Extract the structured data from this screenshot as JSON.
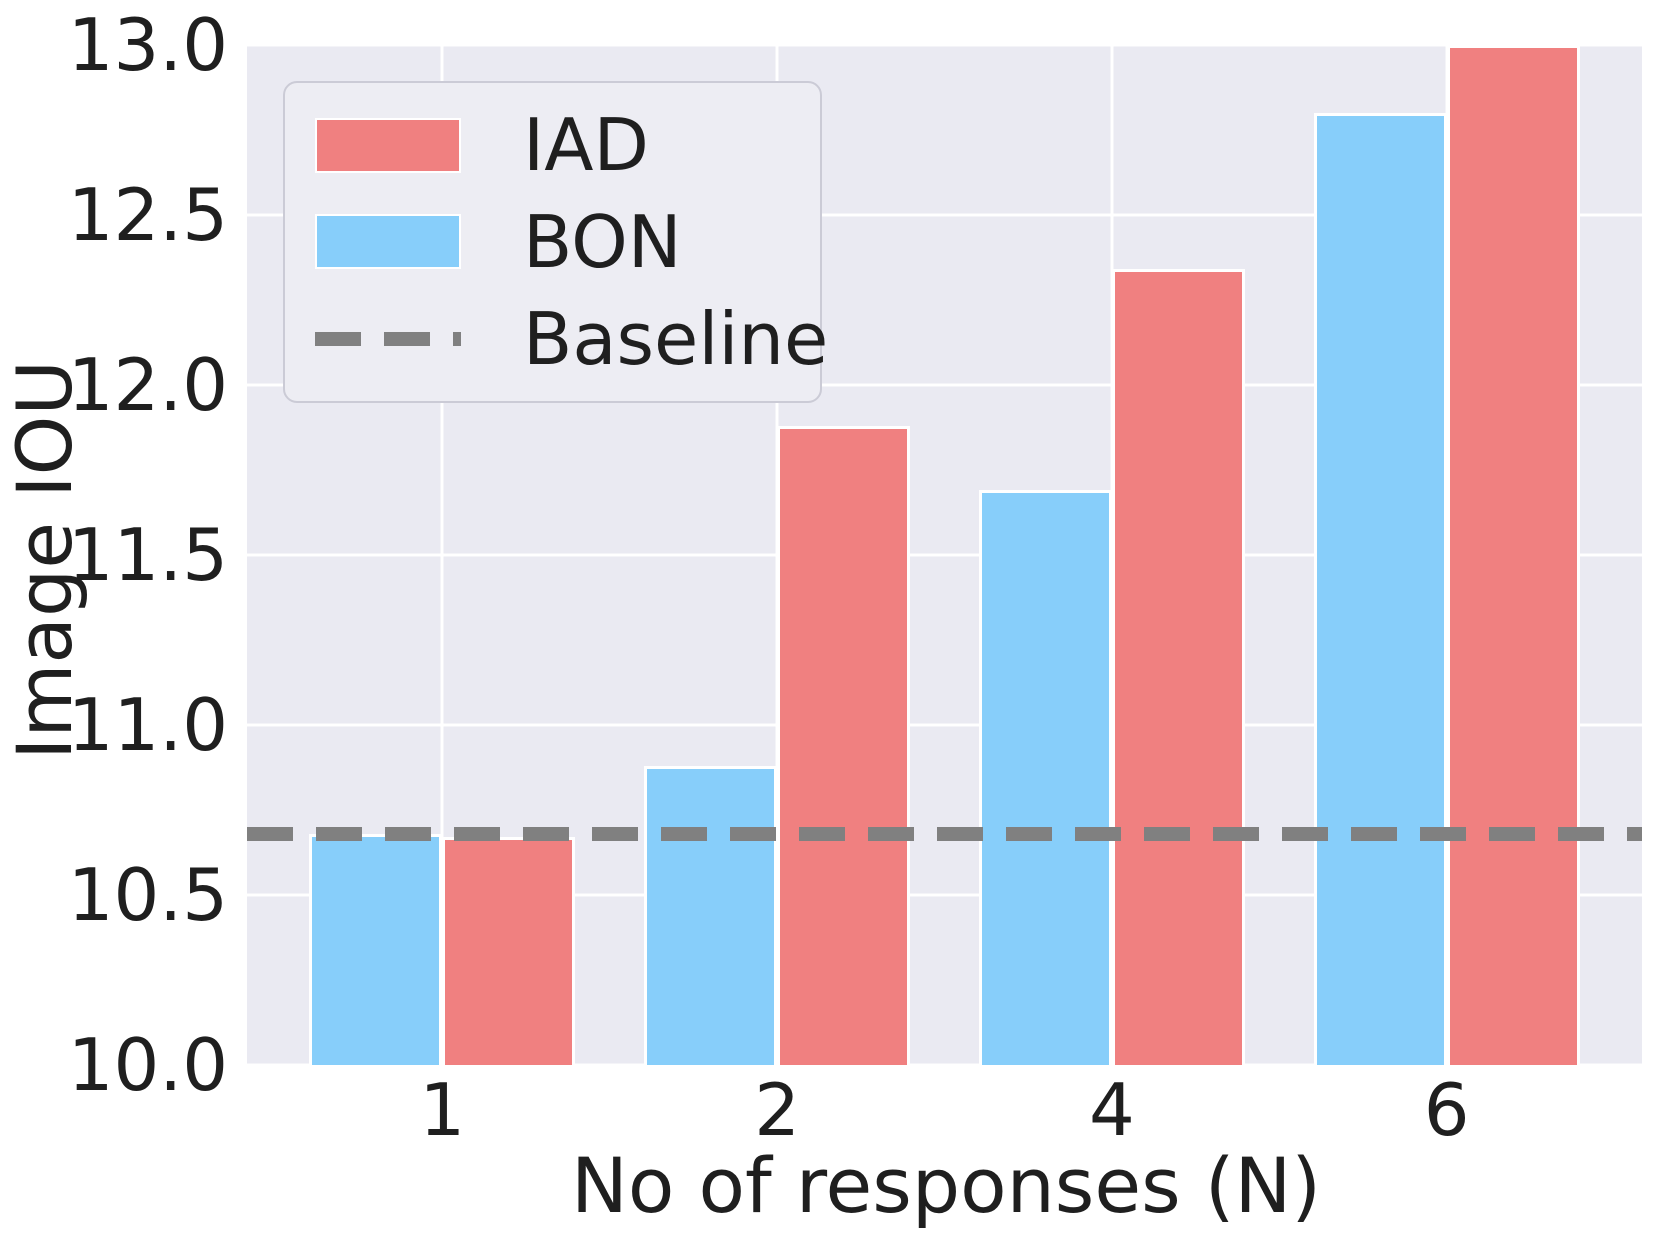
{
  "figure": {
    "background": "#ffffff",
    "plot_background": "#eaeaf2",
    "gridline_color": "#ffffff",
    "text_color": "#1f1f1f"
  },
  "chart_data": {
    "type": "bar",
    "title": "",
    "xlabel": "No of responses (N)",
    "ylabel": "Image IOU",
    "categories": [
      "1",
      "2",
      "4",
      "6"
    ],
    "series": [
      {
        "name": "BON",
        "color": "#87cefa",
        "values": [
          10.68,
          10.88,
          11.69,
          12.8
        ]
      },
      {
        "name": "IAD",
        "color": "#f08080",
        "values": [
          10.67,
          11.88,
          12.34,
          13.0
        ]
      }
    ],
    "baseline": {
      "name": "Baseline",
      "value": 10.68,
      "color": "#808080",
      "style": "dashed"
    },
    "ylim": [
      10.0,
      13.0
    ],
    "yticks": [
      13.0,
      12.5,
      12.0,
      11.5,
      11.0,
      10.5,
      10.0
    ],
    "ytick_labels": [
      "13.0",
      "12.5",
      "12.0",
      "11.5",
      "11.0",
      "10.5",
      "10.0"
    ],
    "grid": true,
    "legend": {
      "position": "upper left",
      "entries": [
        {
          "label": "IAD",
          "swatch": "rect",
          "color": "#f08080"
        },
        {
          "label": "BON",
          "swatch": "rect",
          "color": "#87cefa"
        },
        {
          "label": "Baseline",
          "swatch": "dashed-line",
          "color": "#808080"
        }
      ]
    }
  }
}
